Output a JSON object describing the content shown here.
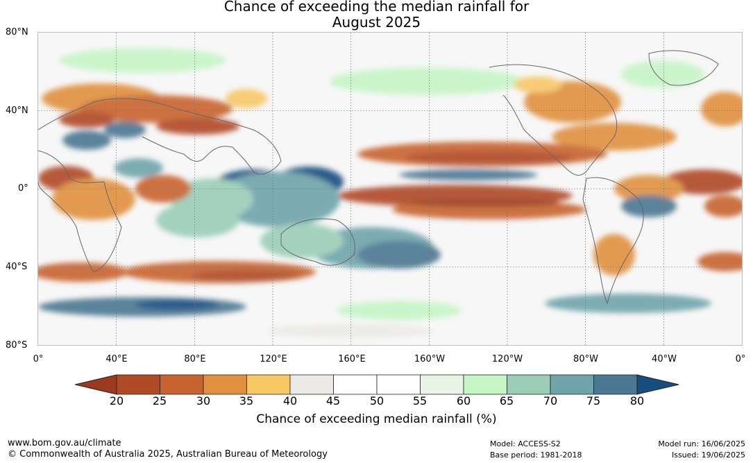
{
  "title": {
    "line1": "Chance of exceeding the median rainfall for",
    "line2": "August 2025"
  },
  "map": {
    "lat_labels": [
      "80°N",
      "40°N",
      "0°",
      "40°S",
      "80°S"
    ],
    "lon_labels": [
      "0°",
      "40°E",
      "80°E",
      "120°E",
      "160°E",
      "160°W",
      "120°W",
      "80°W",
      "40°W",
      "0°"
    ]
  },
  "colorbar": {
    "ticks": [
      "20",
      "25",
      "30",
      "35",
      "40",
      "45",
      "50",
      "55",
      "60",
      "65",
      "70",
      "75",
      "80"
    ],
    "colors": {
      "below_20": "#9b3a1f",
      "c20_25": "#b04a26",
      "c25_30": "#c8632f",
      "c30_35": "#e0903f",
      "c35_40": "#f8c866",
      "c40_45": "#eceae6",
      "c45_55": "#ffffff",
      "c55_60": "#e8f5e6",
      "c60_65": "#c6f5c6",
      "c65_70": "#9bcdb7",
      "c70_75": "#6ea4aa",
      "c75_80": "#4b7792",
      "above_80": "#174e80"
    },
    "label": "Chance of exceeding median rainfall (%)"
  },
  "footer": {
    "website": "www.bom.gov.au/climate",
    "copyright": "© Commonwealth of Australia 2025, Australian Bureau of Meteorology",
    "model": "Model: ACCESS-S2",
    "base_period": "Base period: 1981-2018",
    "model_run": "Model run: 16/06/2025",
    "issued": "Issued: 19/06/2025"
  }
}
